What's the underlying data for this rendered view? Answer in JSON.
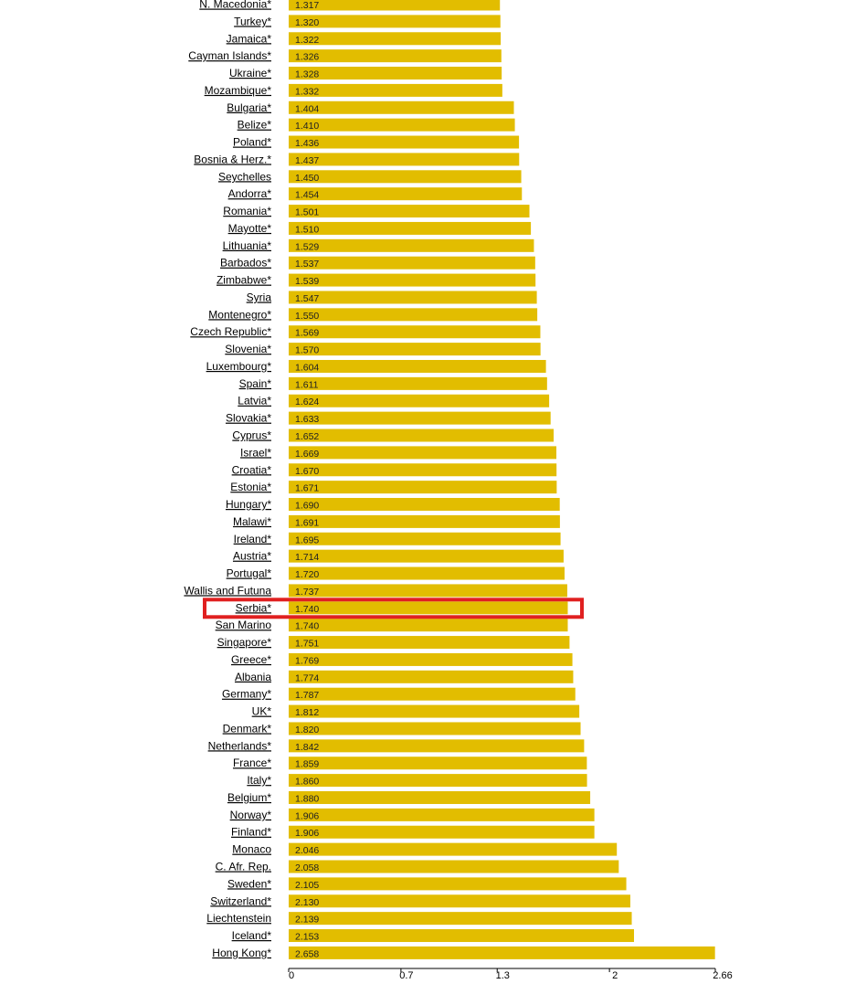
{
  "colors": {
    "bar": "#e2bd00",
    "highlight_box": "#e02020",
    "axis": "#000000"
  },
  "highlighted_category": "Serbia*",
  "chart_data": {
    "type": "bar",
    "orientation": "horizontal",
    "categories": [
      "N. Macedonia*",
      "Turkey*",
      "Jamaica*",
      "Cayman Islands*",
      "Ukraine*",
      "Mozambique*",
      "Bulgaria*",
      "Belize*",
      "Poland*",
      "Bosnia & Herz.*",
      "Seychelles",
      "Andorra*",
      "Romania*",
      "Mayotte*",
      "Lithuania*",
      "Barbados*",
      "Zimbabwe*",
      "Syria",
      "Montenegro*",
      "Czech Republic*",
      "Slovenia*",
      "Luxembourg*",
      "Spain*",
      "Latvia*",
      "Slovakia*",
      "Cyprus*",
      "Israel*",
      "Croatia*",
      "Estonia*",
      "Hungary*",
      "Malawi*",
      "Ireland*",
      "Austria*",
      "Portugal*",
      "Wallis and Futuna",
      "Serbia*",
      "San Marino",
      "Singapore*",
      "Greece*",
      "Albania",
      "Germany*",
      "UK*",
      "Denmark*",
      "Netherlands*",
      "France*",
      "Italy*",
      "Belgium*",
      "Norway*",
      "Finland*",
      "Monaco",
      "C. Afr. Rep.",
      "Sweden*",
      "Switzerland*",
      "Liechtenstein",
      "Iceland*",
      "Hong Kong*"
    ],
    "values": [
      1.317,
      1.32,
      1.322,
      1.326,
      1.328,
      1.332,
      1.404,
      1.41,
      1.436,
      1.437,
      1.45,
      1.454,
      1.501,
      1.51,
      1.529,
      1.537,
      1.539,
      1.547,
      1.55,
      1.569,
      1.57,
      1.604,
      1.611,
      1.624,
      1.633,
      1.652,
      1.669,
      1.67,
      1.671,
      1.69,
      1.691,
      1.695,
      1.714,
      1.72,
      1.737,
      1.74,
      1.74,
      1.751,
      1.769,
      1.774,
      1.787,
      1.812,
      1.82,
      1.842,
      1.859,
      1.86,
      1.88,
      1.906,
      1.906,
      2.046,
      2.058,
      2.105,
      2.13,
      2.139,
      2.153,
      2.658
    ],
    "value_labels": [
      "1.317",
      "1.320",
      "1.322",
      "1.326",
      "1.328",
      "1.332",
      "1.404",
      "1.410",
      "1.436",
      "1.437",
      "1.450",
      "1.454",
      "1.501",
      "1.510",
      "1.529",
      "1.537",
      "1.539",
      "1.547",
      "1.550",
      "1.569",
      "1.570",
      "1.604",
      "1.611",
      "1.624",
      "1.633",
      "1.652",
      "1.669",
      "1.670",
      "1.671",
      "1.690",
      "1.691",
      "1.695",
      "1.714",
      "1.720",
      "1.737",
      "1.740",
      "1.740",
      "1.751",
      "1.769",
      "1.774",
      "1.787",
      "1.812",
      "1.820",
      "1.842",
      "1.859",
      "1.860",
      "1.880",
      "1.906",
      "1.906",
      "2.046",
      "2.058",
      "2.105",
      "2.130",
      "2.139",
      "2.153",
      "2.658"
    ],
    "xlim": [
      0,
      2.66
    ],
    "x_ticks": [
      0,
      0.7,
      1.3,
      2,
      2.66
    ],
    "x_tick_labels": [
      "0",
      "0.7",
      "1.3",
      "2",
      "2.66"
    ],
    "grid": false,
    "legend": "none"
  }
}
